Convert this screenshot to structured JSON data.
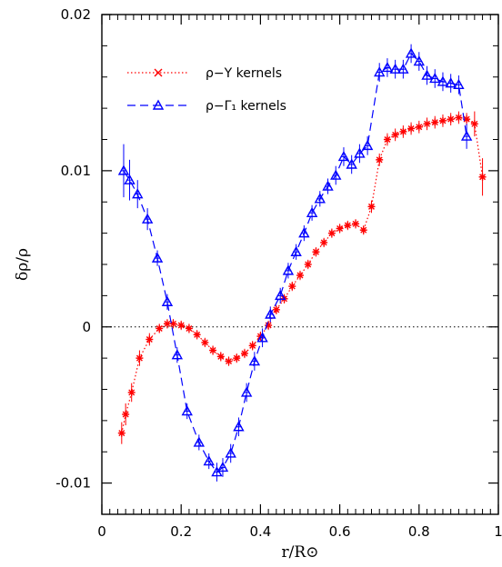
{
  "chart_data": {
    "type": "line",
    "xlabel": "r/R⊙",
    "ylabel": "δρ/ρ",
    "xlim": [
      0,
      1.0
    ],
    "ylim": [
      -0.012,
      0.02
    ],
    "x_ticks": [
      0,
      0.2,
      0.4,
      0.6,
      0.8,
      1
    ],
    "x_tick_labels": [
      "0",
      "0.2",
      "0.4",
      "0.6",
      "0.8",
      "1"
    ],
    "y_ticks": [
      -0.01,
      0,
      0.01,
      0.02
    ],
    "y_tick_labels": [
      "-0.01",
      "0",
      "0.01",
      "0.02"
    ],
    "grid": false,
    "reference_line": {
      "y": 0,
      "style": "dotted",
      "color": "#000000"
    },
    "legend_position": "top-left",
    "series": [
      {
        "name": "ρ−Y kernels",
        "color": "#ff0000",
        "marker": "asterisk",
        "line_style": "dotted",
        "x": [
          0.05,
          0.06,
          0.075,
          0.095,
          0.12,
          0.145,
          0.165,
          0.18,
          0.2,
          0.22,
          0.24,
          0.26,
          0.28,
          0.3,
          0.32,
          0.34,
          0.36,
          0.38,
          0.4,
          0.42,
          0.44,
          0.46,
          0.48,
          0.5,
          0.52,
          0.54,
          0.56,
          0.58,
          0.6,
          0.62,
          0.64,
          0.66,
          0.68,
          0.7,
          0.72,
          0.74,
          0.76,
          0.78,
          0.8,
          0.82,
          0.84,
          0.86,
          0.88,
          0.9,
          0.92,
          0.94,
          0.96
        ],
        "y": [
          -0.0068,
          -0.0056,
          -0.0042,
          -0.002,
          -0.0008,
          -0.0001,
          0.0002,
          0.0002,
          0.0001,
          -0.0001,
          -0.0005,
          -0.001,
          -0.0015,
          -0.0019,
          -0.0022,
          -0.002,
          -0.0017,
          -0.0012,
          -0.0006,
          0.0001,
          0.0011,
          0.0018,
          0.0026,
          0.0033,
          0.004,
          0.0048,
          0.0054,
          0.006,
          0.0063,
          0.0065,
          0.0066,
          0.0062,
          0.0077,
          0.0107,
          0.012,
          0.0123,
          0.0125,
          0.0127,
          0.0128,
          0.013,
          0.0131,
          0.0132,
          0.0133,
          0.0134,
          0.0133,
          0.013,
          0.0096
        ],
        "x_err": [
          0.008,
          0.008,
          0.008,
          0.008,
          0.008,
          0.008,
          0.008,
          0.008,
          0.008,
          0.008,
          0.008,
          0.008,
          0.008,
          0.008,
          0.008,
          0.008,
          0.008,
          0.008,
          0.008,
          0.008,
          0.008,
          0.008,
          0.008,
          0.008,
          0.008,
          0.008,
          0.008,
          0.008,
          0.008,
          0.008,
          0.008,
          0.008,
          0.008,
          0.008,
          0.008,
          0.008,
          0.008,
          0.008,
          0.008,
          0.008,
          0.008,
          0.008,
          0.008,
          0.008,
          0.008,
          0.008,
          0.008
        ],
        "y_err": [
          0.0007,
          0.0007,
          0.0006,
          0.0005,
          0.0004,
          0.0003,
          0.0003,
          0.0003,
          0.0003,
          0.0003,
          0.0003,
          0.0003,
          0.0003,
          0.0003,
          0.0003,
          0.0003,
          0.0003,
          0.0003,
          0.0003,
          0.0003,
          0.0003,
          0.0003,
          0.0003,
          0.0003,
          0.0003,
          0.0003,
          0.0003,
          0.0003,
          0.0003,
          0.0003,
          0.0003,
          0.0003,
          0.0004,
          0.0004,
          0.0004,
          0.0004,
          0.0004,
          0.0004,
          0.0004,
          0.0004,
          0.0004,
          0.0004,
          0.0004,
          0.0004,
          0.0004,
          0.0008,
          0.0012
        ]
      },
      {
        "name": "ρ−Γ₁ kernels",
        "color": "#0000ff",
        "marker": "triangle",
        "line_style": "dashed",
        "x": [
          0.055,
          0.07,
          0.09,
          0.115,
          0.14,
          0.165,
          0.19,
          0.215,
          0.245,
          0.27,
          0.29,
          0.305,
          0.325,
          0.345,
          0.365,
          0.385,
          0.405,
          0.425,
          0.45,
          0.47,
          0.49,
          0.51,
          0.53,
          0.55,
          0.57,
          0.59,
          0.61,
          0.63,
          0.65,
          0.67,
          0.7,
          0.72,
          0.74,
          0.76,
          0.78,
          0.8,
          0.82,
          0.84,
          0.86,
          0.88,
          0.9,
          0.92
        ],
        "y": [
          0.01,
          0.0094,
          0.0085,
          0.0069,
          0.0044,
          0.0016,
          -0.0018,
          -0.0054,
          -0.0074,
          -0.0086,
          -0.0093,
          -0.009,
          -0.0081,
          -0.0064,
          -0.0042,
          -0.0022,
          -0.0007,
          0.0008,
          0.002,
          0.0036,
          0.0048,
          0.006,
          0.0073,
          0.0082,
          0.009,
          0.0097,
          0.0109,
          0.0104,
          0.0111,
          0.0116,
          0.0163,
          0.0166,
          0.0165,
          0.0165,
          0.0175,
          0.017,
          0.0161,
          0.0159,
          0.0157,
          0.0156,
          0.0155,
          0.0122
        ],
        "x_err": [
          0.008,
          0.008,
          0.008,
          0.008,
          0.008,
          0.008,
          0.008,
          0.008,
          0.008,
          0.008,
          0.008,
          0.008,
          0.008,
          0.008,
          0.008,
          0.008,
          0.008,
          0.008,
          0.008,
          0.008,
          0.008,
          0.008,
          0.008,
          0.008,
          0.008,
          0.008,
          0.008,
          0.008,
          0.008,
          0.008,
          0.008,
          0.008,
          0.008,
          0.008,
          0.008,
          0.008,
          0.008,
          0.008,
          0.008,
          0.008,
          0.008,
          0.008
        ],
        "y_err": [
          0.0017,
          0.0013,
          0.0009,
          0.0007,
          0.0005,
          0.0005,
          0.0005,
          0.0005,
          0.0005,
          0.0005,
          0.0006,
          0.0006,
          0.0006,
          0.0006,
          0.0006,
          0.0006,
          0.0006,
          0.0005,
          0.0005,
          0.0005,
          0.0005,
          0.0005,
          0.0005,
          0.0005,
          0.0005,
          0.0006,
          0.0006,
          0.0006,
          0.0006,
          0.0006,
          0.0006,
          0.0006,
          0.0006,
          0.0006,
          0.0006,
          0.0006,
          0.0006,
          0.0006,
          0.0006,
          0.0006,
          0.0006,
          0.0008
        ]
      }
    ]
  }
}
